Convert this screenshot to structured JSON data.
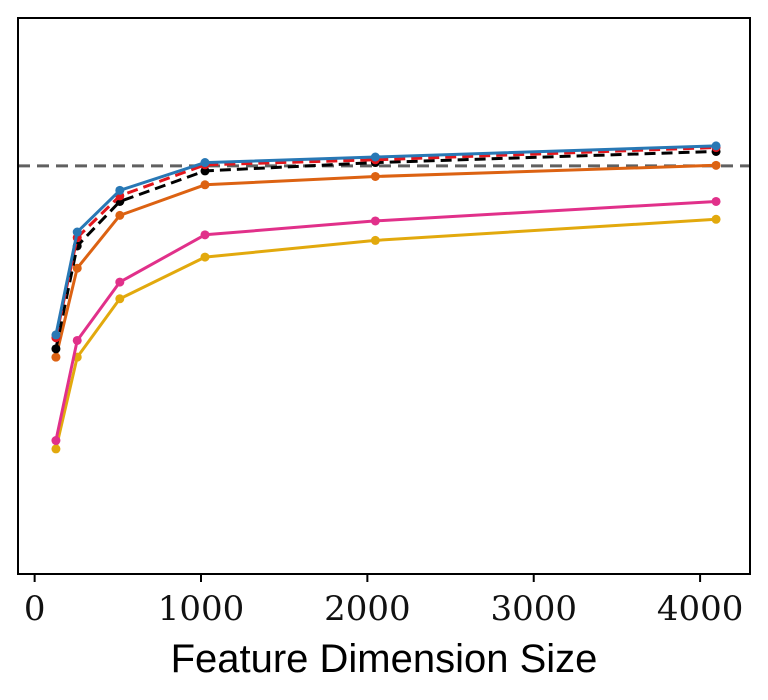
{
  "chart_data": {
    "type": "line",
    "title": "",
    "xlabel": "Feature Dimension Size",
    "ylabel": "",
    "x": [
      128,
      256,
      512,
      1024,
      2048,
      4096
    ],
    "xlim": [
      -100,
      4300
    ],
    "ylim": [
      0,
      100
    ],
    "xticks": [
      0,
      1000,
      2000,
      3000,
      4000
    ],
    "xtick_labels": [
      "0",
      "1000",
      "2000",
      "3000",
      "4000"
    ],
    "reference_line": {
      "y": 73.4,
      "style": "dashed",
      "color": "#606060"
    },
    "series": [
      {
        "name": "blue",
        "color": "#2878b5",
        "dashed": false,
        "values": [
          43.0,
          61.5,
          69.0,
          74.0,
          75.0,
          77.0
        ]
      },
      {
        "name": "red",
        "color": "#e3161c",
        "dashed": true,
        "values": [
          42.5,
          60.5,
          68.0,
          73.6,
          74.5,
          76.7
        ]
      },
      {
        "name": "black",
        "color": "#000000",
        "dashed": true,
        "values": [
          40.5,
          59.0,
          67.0,
          72.5,
          74.0,
          76.0
        ]
      },
      {
        "name": "orange",
        "color": "#dc6212",
        "dashed": false,
        "values": [
          39.0,
          55.0,
          64.5,
          70.0,
          71.5,
          73.5
        ]
      },
      {
        "name": "pink",
        "color": "#e1308a",
        "dashed": false,
        "values": [
          24.0,
          42.0,
          52.5,
          61.0,
          63.5,
          67.0
        ]
      },
      {
        "name": "yellow",
        "color": "#e2a90d",
        "dashed": false,
        "values": [
          22.5,
          39.0,
          49.5,
          57.0,
          60.0,
          63.8
        ]
      }
    ]
  }
}
